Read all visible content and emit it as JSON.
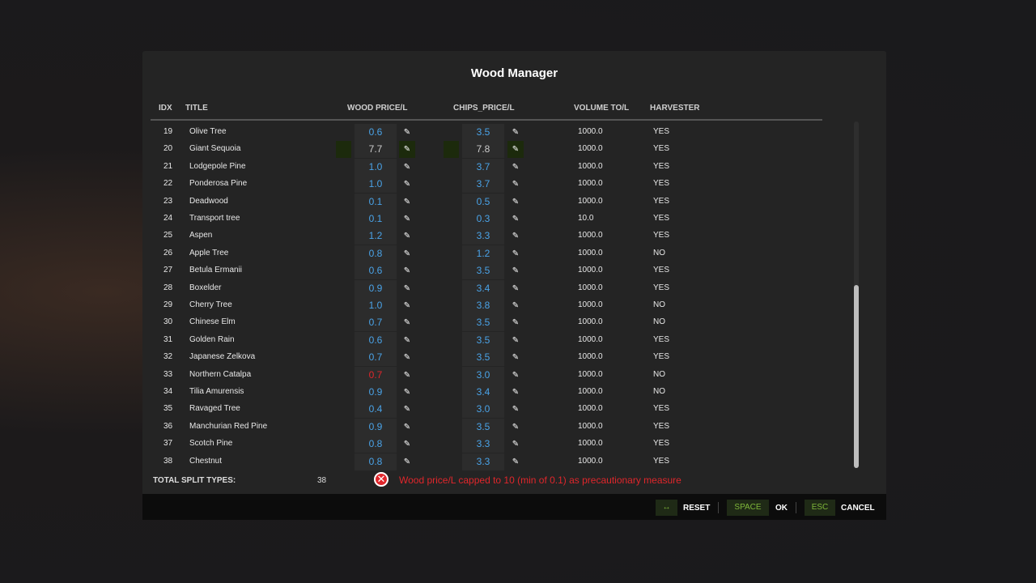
{
  "dialog": {
    "title": "Wood Manager"
  },
  "columns": {
    "idx": "IDX",
    "title": "TITLE",
    "wood": "WOOD PRICE/L",
    "chips": "CHIPS_PRICE/L",
    "volume": "VOLUME TO/L",
    "harvester": "HARVESTER"
  },
  "rows": [
    {
      "idx": "19",
      "title": "Olive Tree",
      "wood": "0.6",
      "chips": "3.5",
      "volume": "1000.0",
      "harvester": "YES"
    },
    {
      "idx": "20",
      "title": "Giant Sequoia",
      "wood": "7.7",
      "chips": "7.8",
      "volume": "1000.0",
      "harvester": "YES",
      "selected": true
    },
    {
      "idx": "21",
      "title": "Lodgepole Pine",
      "wood": "1.0",
      "chips": "3.7",
      "volume": "1000.0",
      "harvester": "YES"
    },
    {
      "idx": "22",
      "title": "Ponderosa Pine",
      "wood": "1.0",
      "chips": "3.7",
      "volume": "1000.0",
      "harvester": "YES"
    },
    {
      "idx": "23",
      "title": "Deadwood",
      "wood": "0.1",
      "chips": "0.5",
      "volume": "1000.0",
      "harvester": "YES"
    },
    {
      "idx": "24",
      "title": "Transport tree",
      "wood": "0.1",
      "chips": "0.3",
      "volume": "10.0",
      "harvester": "YES"
    },
    {
      "idx": "25",
      "title": "Aspen",
      "wood": "1.2",
      "chips": "3.3",
      "volume": "1000.0",
      "harvester": "YES"
    },
    {
      "idx": "26",
      "title": "Apple Tree",
      "wood": "0.8",
      "chips": "1.2",
      "volume": "1000.0",
      "harvester": "NO"
    },
    {
      "idx": "27",
      "title": "Betula Ermanii",
      "wood": "0.6",
      "chips": "3.5",
      "volume": "1000.0",
      "harvester": "YES"
    },
    {
      "idx": "28",
      "title": "Boxelder",
      "wood": "0.9",
      "chips": "3.4",
      "volume": "1000.0",
      "harvester": "YES"
    },
    {
      "idx": "29",
      "title": "Cherry Tree",
      "wood": "1.0",
      "chips": "3.8",
      "volume": "1000.0",
      "harvester": "NO"
    },
    {
      "idx": "30",
      "title": "Chinese Elm",
      "wood": "0.7",
      "chips": "3.5",
      "volume": "1000.0",
      "harvester": "NO"
    },
    {
      "idx": "31",
      "title": "Golden Rain",
      "wood": "0.6",
      "chips": "3.5",
      "volume": "1000.0",
      "harvester": "YES"
    },
    {
      "idx": "32",
      "title": "Japanese Zelkova",
      "wood": "0.7",
      "chips": "3.5",
      "volume": "1000.0",
      "harvester": "YES"
    },
    {
      "idx": "33",
      "title": "Northern Catalpa",
      "wood": "0.7",
      "chips": "3.0",
      "volume": "1000.0",
      "harvester": "NO",
      "error": true
    },
    {
      "idx": "34",
      "title": "Tilia Amurensis",
      "wood": "0.9",
      "chips": "3.4",
      "volume": "1000.0",
      "harvester": "NO"
    },
    {
      "idx": "35",
      "title": "Ravaged Tree",
      "wood": "0.4",
      "chips": "3.0",
      "volume": "1000.0",
      "harvester": "YES"
    },
    {
      "idx": "36",
      "title": "Manchurian Red Pine",
      "wood": "0.9",
      "chips": "3.5",
      "volume": "1000.0",
      "harvester": "YES"
    },
    {
      "idx": "37",
      "title": "Scotch Pine",
      "wood": "0.8",
      "chips": "3.3",
      "volume": "1000.0",
      "harvester": "YES"
    },
    {
      "idx": "38",
      "title": "Chestnut",
      "wood": "0.8",
      "chips": "3.3",
      "volume": "1000.0",
      "harvester": "YES"
    }
  ],
  "summary": {
    "label": "TOTAL SPLIT TYPES:",
    "count": "38"
  },
  "error": {
    "icon": "error-x-circle-icon",
    "message": "Wood price/L capped to 10 (min of 0.1) as precautionary measure",
    "color": "#e0262b"
  },
  "footer": {
    "reset_key": "↔",
    "reset": "RESET",
    "ok_key": "SPACE",
    "ok": "OK",
    "cancel_key": "ESC",
    "cancel": "CANCEL"
  },
  "colors": {
    "value": "#4aa3e8",
    "accent": "#7fb83a",
    "error": "#e0262b"
  }
}
